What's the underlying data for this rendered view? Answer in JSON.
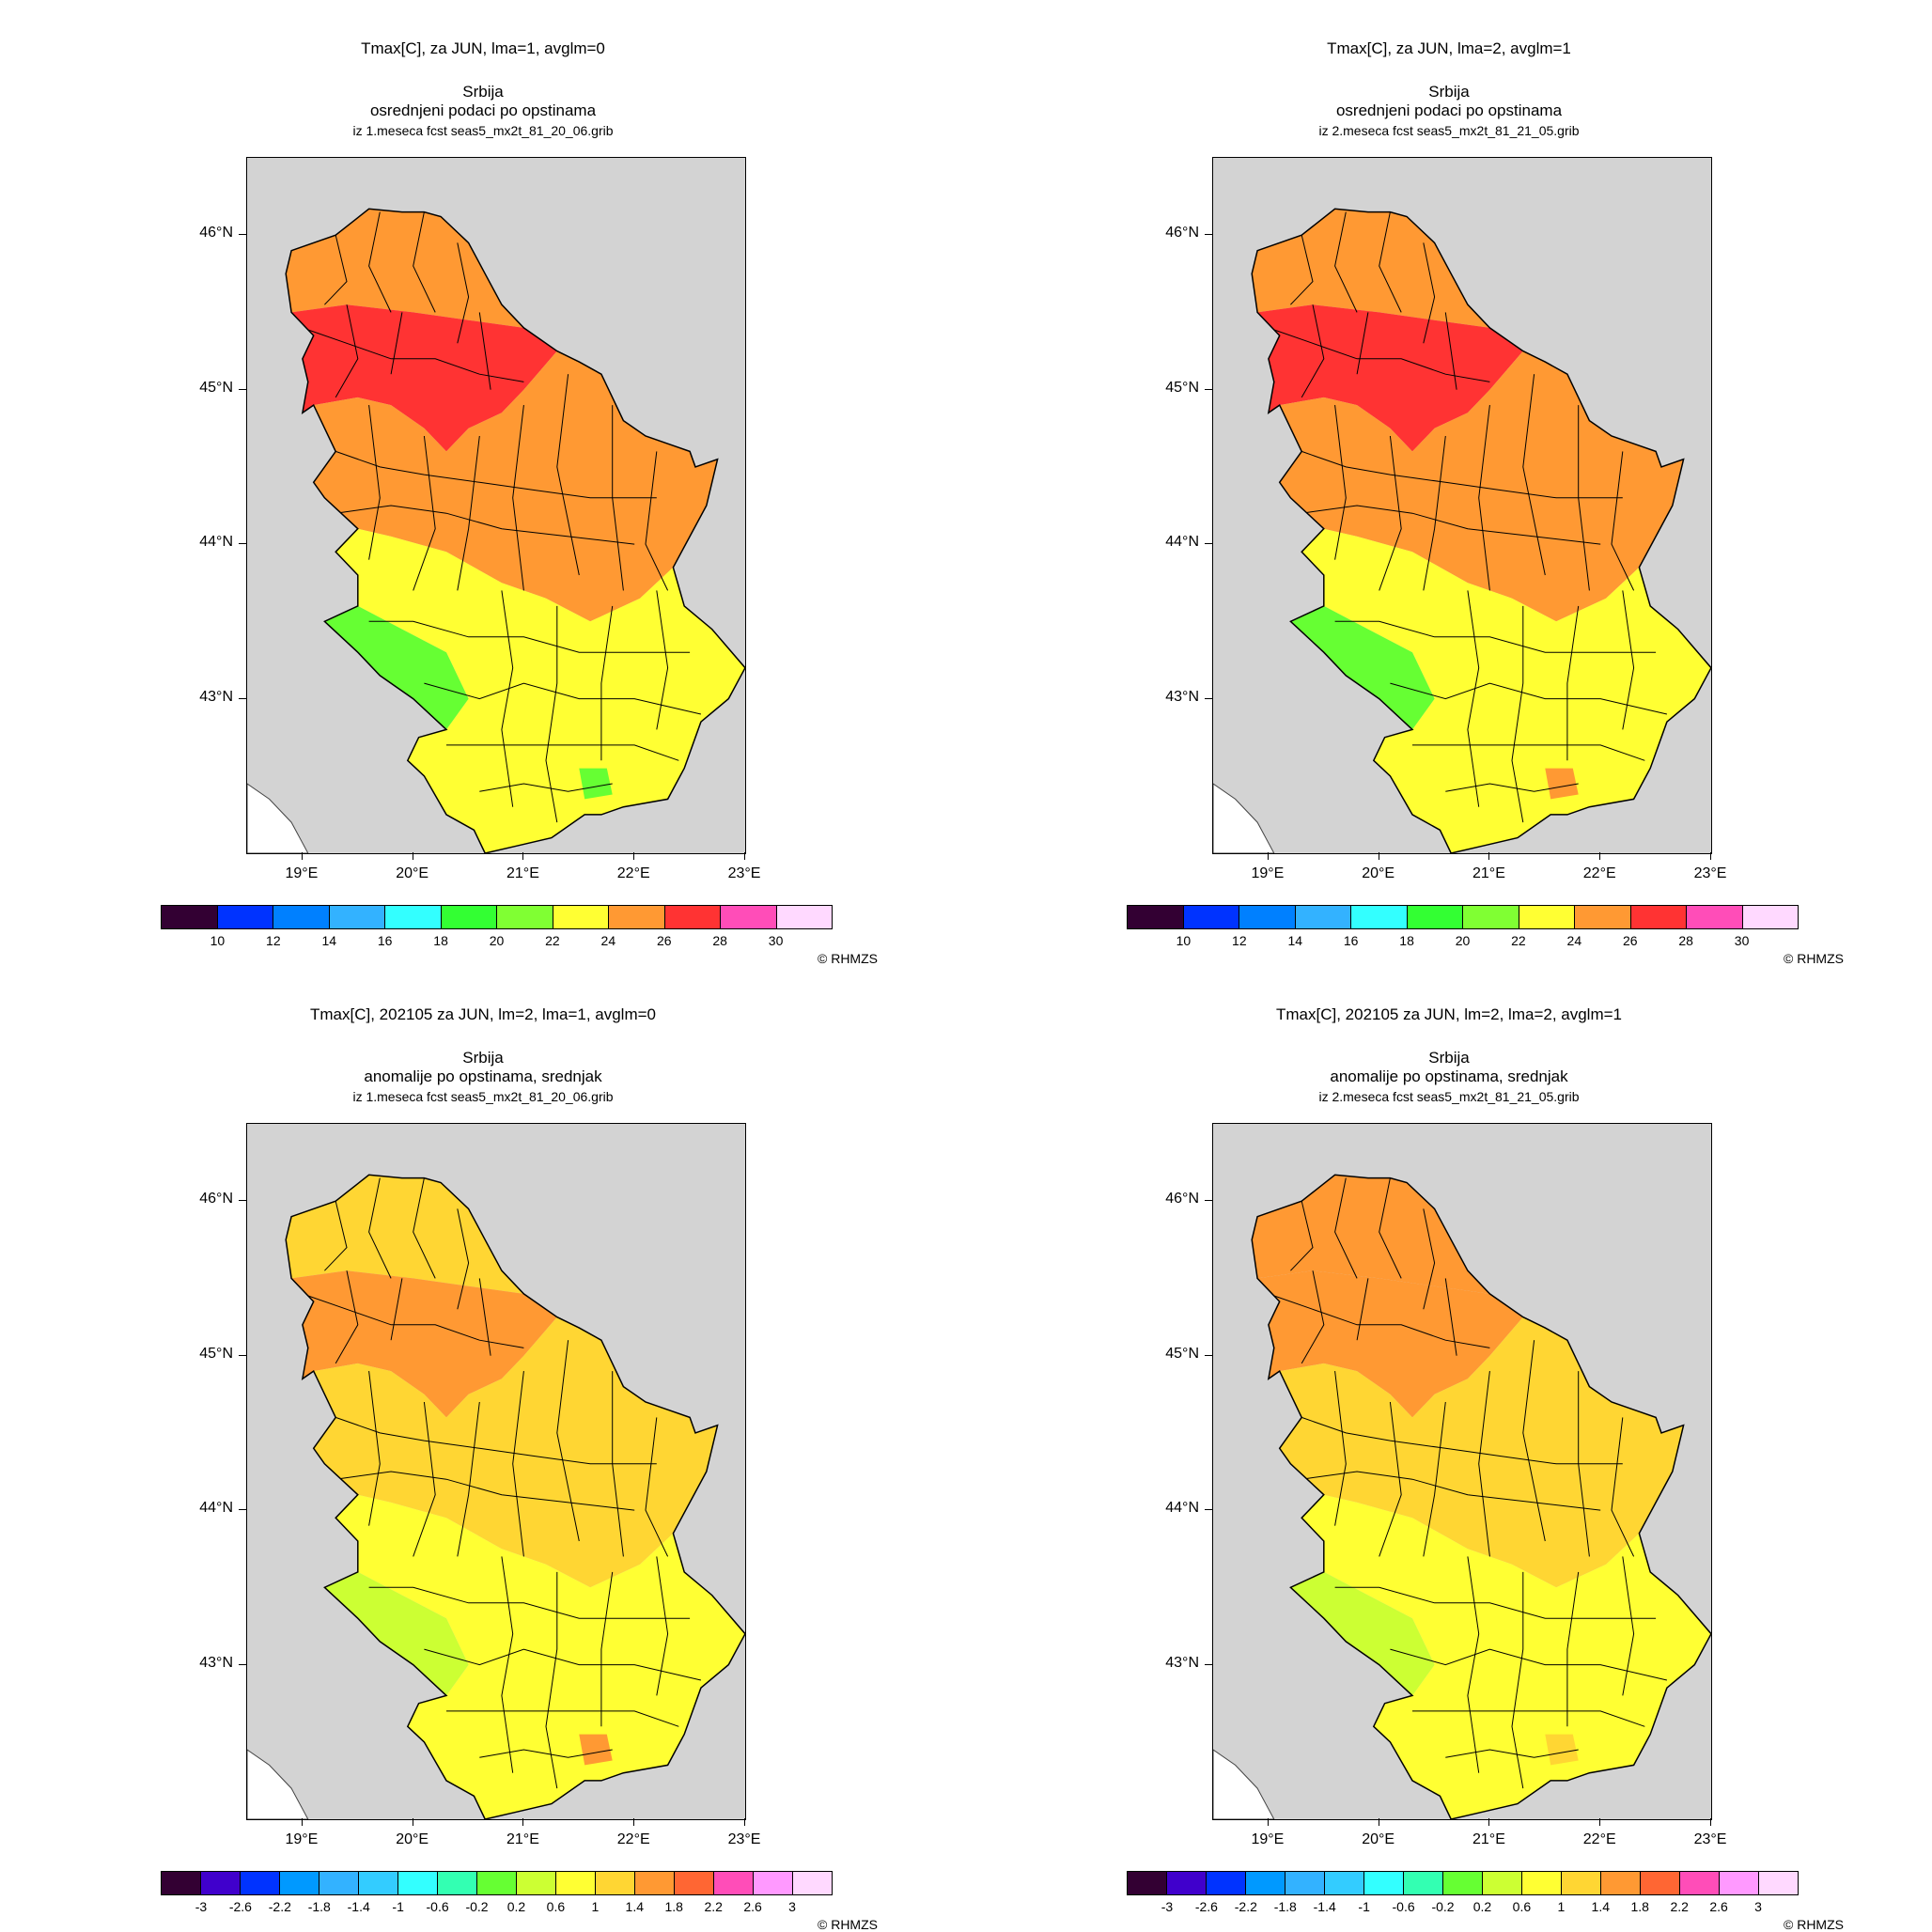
{
  "panels": [
    {
      "title": "Tmax[C], za JUN, lma=1, avglm=0",
      "region": "Srbija",
      "subtitle": "osrednjeni podaci po opstinama",
      "source": "iz 1.meseca fcst seas5_mx2t_81_20_06.grib",
      "scale": "abs",
      "zones": {
        "north": "#ff9933",
        "core": "#ff3333",
        "mid": "#ff9933",
        "south": "#ffff33",
        "sw": "#66ff33",
        "pocket": "#66ff33"
      }
    },
    {
      "title": "Tmax[C], za JUN, lma=2, avglm=1",
      "region": "Srbija",
      "subtitle": "osrednjeni podaci po opstinama",
      "source": "iz 2.meseca fcst seas5_mx2t_81_21_05.grib",
      "scale": "abs",
      "zones": {
        "north": "#ff9933",
        "core": "#ff3333",
        "mid": "#ff9933",
        "south": "#ffff33",
        "sw": "#66ff33",
        "pocket": "#ff9933"
      }
    },
    {
      "title": "Tmax[C], 202105 za JUN, lm=2, lma=1, avglm=0",
      "region": "Srbija",
      "subtitle": "anomalije po opstinama, srednjak",
      "source": "iz 1.meseca fcst seas5_mx2t_81_20_06.grib",
      "scale": "anom",
      "zones": {
        "north": "#ffd633",
        "core": "#ff9933",
        "mid": "#ffd633",
        "south": "#ffff33",
        "sw": "#ccff33",
        "pocket": "#ff9933"
      }
    },
    {
      "title": "Tmax[C], 202105 za JUN, lm=2, lma=2, avglm=1",
      "region": "Srbija",
      "subtitle": "anomalije po opstinama, srednjak",
      "source": "iz 2.meseca fcst seas5_mx2t_81_21_05.grib",
      "scale": "anom",
      "zones": {
        "north": "#ff9933",
        "core": "#ff9933",
        "mid": "#ffd633",
        "south": "#ffff33",
        "sw": "#ccff33",
        "pocket": "#ffd633"
      }
    }
  ],
  "axes": {
    "lat_labels": [
      "46°N",
      "45°N",
      "44°N",
      "43°N"
    ],
    "lon_labels": [
      "19°E",
      "20°E",
      "21°E",
      "22°E",
      "23°E"
    ]
  },
  "scales": {
    "abs": {
      "colors": [
        "#330033",
        "#0033ff",
        "#0080ff",
        "#33b2ff",
        "#33ffff",
        "#33ff33",
        "#80ff33",
        "#ffff33",
        "#ff9933",
        "#ff3333",
        "#ff4db8",
        "#ffd9ff"
      ],
      "labels": [
        "10",
        "12",
        "14",
        "16",
        "18",
        "20",
        "22",
        "24",
        "26",
        "28",
        "30"
      ]
    },
    "anom": {
      "colors": [
        "#330033",
        "#4000cc",
        "#0033ff",
        "#0099ff",
        "#33b2ff",
        "#33ccff",
        "#33ffff",
        "#33ffb2",
        "#66ff33",
        "#ccff33",
        "#ffff33",
        "#ffd633",
        "#ff9933",
        "#ff6633",
        "#ff4db8",
        "#ff99ff",
        "#ffd9ff"
      ],
      "labels": [
        "-3",
        "-2.6",
        "-2.2",
        "-1.8",
        "-1.4",
        "-1",
        "-0.6",
        "-0.2",
        "0.2",
        "0.6",
        "1",
        "1.4",
        "1.8",
        "2.2",
        "2.6",
        "3"
      ]
    }
  },
  "credit": "© RHMZS"
}
